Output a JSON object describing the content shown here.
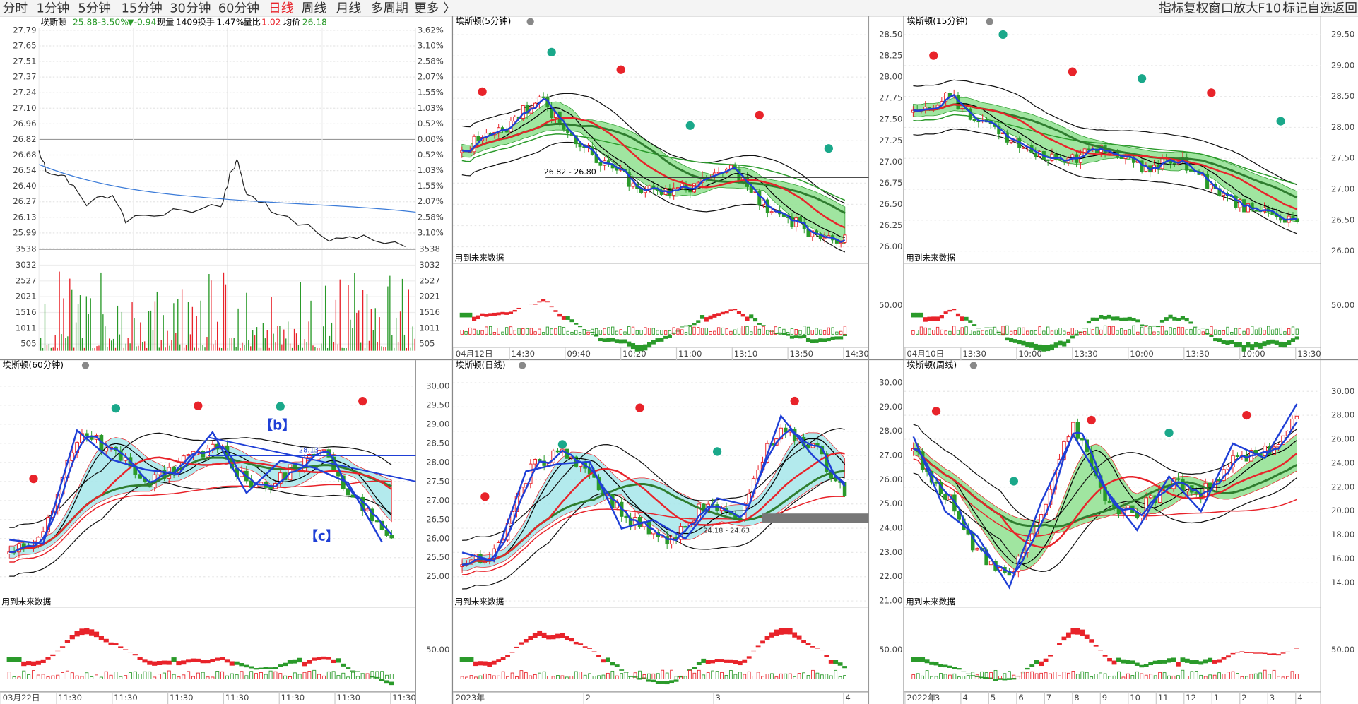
{
  "toolbar": {
    "periods": [
      "分时",
      "1分钟",
      "5分钟",
      "15分钟",
      "30分钟",
      "60分钟",
      "日线",
      "周线",
      "月线",
      "多周期",
      "更多 〉"
    ],
    "active": 6,
    "tools": [
      "指标",
      "复权",
      "窗口",
      "放大",
      "F10",
      "标记",
      "自选",
      "返回"
    ]
  },
  "timeshare": {
    "name": "埃斯顿",
    "price": "25.88",
    "change_pct": "-3.50%",
    "change": "▼-0.94",
    "volume_label": "现量",
    "volume": "1409",
    "turnover_label": "换手",
    "turnover": "1.47%",
    "ratio_label": "量比",
    "ratio": "1.02",
    "avg_label": "均价",
    "avg": "26.18",
    "price_ticks": [
      "27.79",
      "27.65",
      "27.51",
      "27.37",
      "27.24",
      "27.10",
      "26.96",
      "26.82",
      "26.68",
      "26.54",
      "26.40",
      "26.27",
      "26.13",
      "25.99"
    ],
    "pct_ticks": [
      "3.62%",
      "3.10%",
      "2.58%",
      "2.07%",
      "1.55%",
      "1.03%",
      "0.52%",
      "0.00%",
      "0.52%",
      "1.03%",
      "1.55%",
      "2.07%",
      "2.58%",
      "3.10%"
    ],
    "vol_ticks": [
      "3538",
      "3032",
      "2527",
      "2021",
      "1516",
      "1011",
      "505"
    ]
  },
  "panels": [
    {
      "title": "埃斯顿(5分钟)",
      "price_ticks": [
        "28.50",
        "28.25",
        "28.00",
        "27.75",
        "27.50",
        "27.25",
        "27.00",
        "26.75",
        "26.50",
        "26.25",
        "26.00"
      ],
      "future_label": "用到未来数据",
      "sub_tick": "50.00",
      "x_labels": [
        "04月12日",
        "14:30",
        "09:40",
        "10:20",
        "11:00",
        "13:10",
        "13:50",
        "14:30"
      ],
      "annotations": [
        "26.82 - 26.80"
      ]
    },
    {
      "title": "埃斯顿(15分钟)",
      "price_ticks": [
        "29.50",
        "29.00",
        "28.50",
        "28.00",
        "27.50",
        "27.00",
        "26.50",
        "26.00"
      ],
      "future_label": "用到未来数据",
      "sub_tick": "50.00",
      "x_labels": [
        "04月10日",
        "13:30",
        "10:00",
        "13:30",
        "10:00",
        "13:30",
        "10:00",
        "13:30"
      ],
      "annotations": []
    },
    {
      "title": "埃斯顿(60分钟)",
      "price_ticks": [
        "30.00",
        "29.50",
        "29.00",
        "28.50",
        "28.00",
        "27.50",
        "27.00",
        "26.50",
        "26.00",
        "25.50",
        "25.00"
      ],
      "future_label": "用到未来数据",
      "sub_tick": "50.00",
      "x_labels": [
        "03月22日",
        "11:30",
        "11:30",
        "11:30",
        "11:30",
        "11:30",
        "11:30",
        "11:30"
      ],
      "annotations": [
        "【b】",
        "【c】",
        "28.13"
      ]
    },
    {
      "title": "埃斯顿(日线)",
      "price_ticks": [
        "30.00",
        "29.00",
        "28.00",
        "27.00",
        "26.00",
        "25.00",
        "24.00",
        "23.00",
        "22.00",
        "21.00"
      ],
      "future_label": "用到未来数据",
      "sub_tick": "50.00",
      "x_labels": [
        "2023年",
        "2",
        "3",
        "4"
      ],
      "annotations": [
        "24.18 - 24.63"
      ]
    },
    {
      "title": "埃斯顿(周线)",
      "price_ticks": [
        "30.00",
        "28.00",
        "26.00",
        "24.00",
        "22.00",
        "20.00",
        "18.00",
        "16.00",
        "14.00"
      ],
      "future_label": "用到未来数据",
      "sub_tick": "50.00",
      "x_labels": [
        "2022年",
        "3",
        "4",
        "5",
        "6",
        "7",
        "8",
        "9",
        "10",
        "11",
        "12",
        "1",
        "2",
        "3",
        "4"
      ],
      "annotations": []
    }
  ]
}
